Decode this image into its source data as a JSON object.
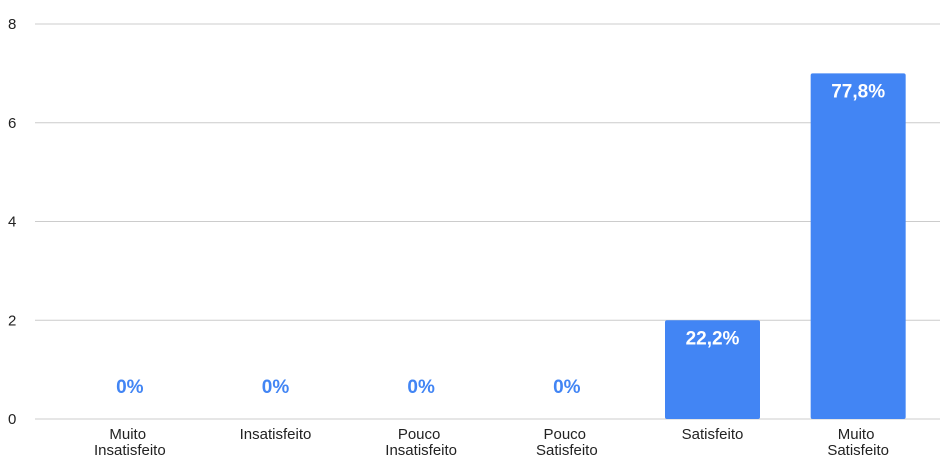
{
  "chart_data": {
    "type": "bar",
    "categories": [
      "Muito Insatisfeito",
      "Insatisfeito",
      "Pouco Insatisfeito",
      "Pouco Satisfeito",
      "Satisfeito",
      "Muito Satisfeito"
    ],
    "values": [
      0,
      0,
      0,
      0,
      2,
      7
    ],
    "value_labels": [
      "0%",
      "0%",
      "0%",
      "0%",
      "22,2%",
      "77,8%"
    ],
    "color": "#4285f4",
    "ylim": [
      0,
      8
    ],
    "yticks": [
      0,
      2,
      4,
      6,
      8
    ],
    "grid": true
  }
}
